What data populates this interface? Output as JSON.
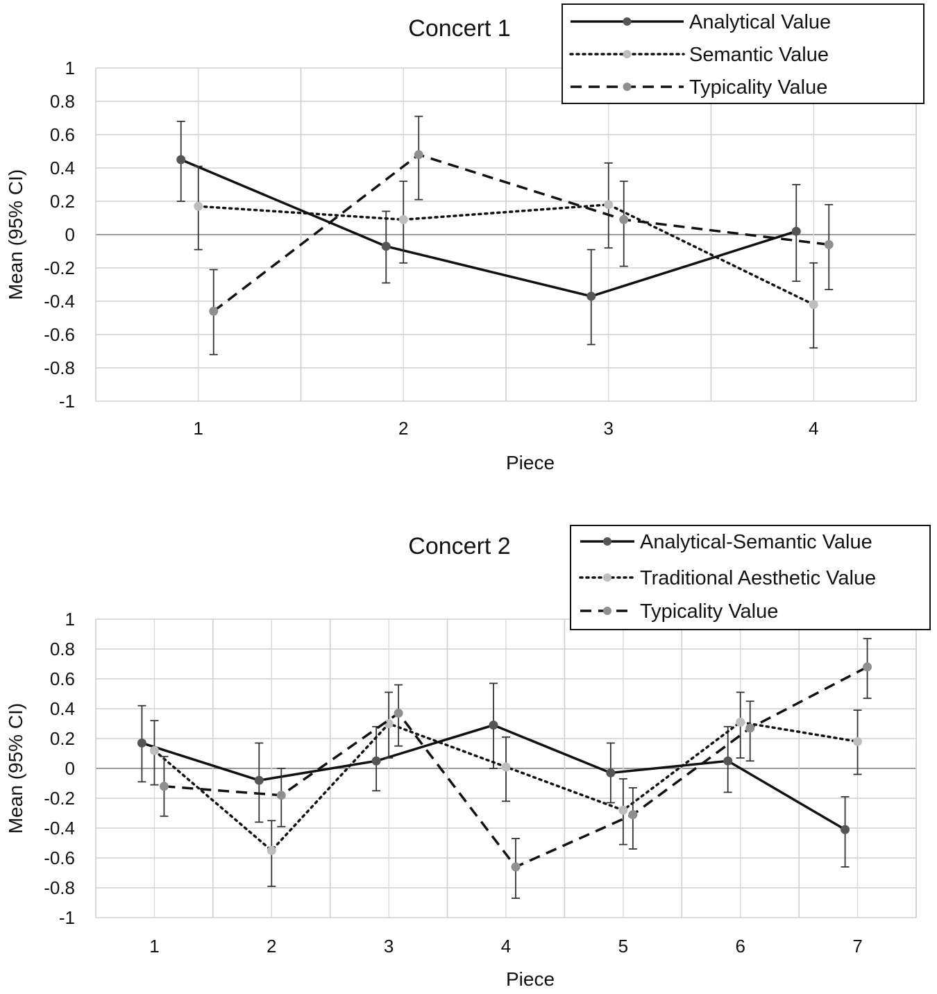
{
  "chart_data": [
    {
      "type": "line",
      "title": "Concert 1",
      "xlabel": "Piece",
      "ylabel": "Mean (95% CI)",
      "categories": [
        "1",
        "2",
        "3",
        "4"
      ],
      "ylim": [
        -1,
        1
      ],
      "yticks": [
        "1",
        "0.8",
        "0.6",
        "0.4",
        "0.2",
        "0",
        "-0.2",
        "-0.4",
        "-0.6",
        "-0.8",
        "-1"
      ],
      "legend_position": "top-right",
      "series": [
        {
          "name": "Analytical Value",
          "style": "solid",
          "color": "#555555",
          "values": [
            0.45,
            -0.07,
            -0.37,
            0.02
          ],
          "ci_upper": [
            0.68,
            0.14,
            -0.09,
            0.3
          ],
          "ci_lower": [
            0.2,
            -0.29,
            -0.66,
            -0.28
          ]
        },
        {
          "name": "Semantic Value",
          "style": "dotted",
          "color": "#b5b5b5",
          "values": [
            0.17,
            0.09,
            0.18,
            -0.42
          ],
          "ci_upper": [
            0.41,
            0.32,
            0.43,
            -0.17
          ],
          "ci_lower": [
            -0.09,
            -0.17,
            -0.08,
            -0.68
          ]
        },
        {
          "name": "Typicality Value",
          "style": "dashed",
          "color": "#8a8a8a",
          "values": [
            -0.46,
            0.48,
            0.09,
            -0.06
          ],
          "ci_upper": [
            -0.21,
            0.71,
            0.32,
            0.18
          ],
          "ci_lower": [
            -0.72,
            0.21,
            -0.19,
            -0.33
          ]
        }
      ]
    },
    {
      "type": "line",
      "title": "Concert 2",
      "xlabel": "Piece",
      "ylabel": "Mean (95% CI)",
      "categories": [
        "1",
        "2",
        "3",
        "4",
        "5",
        "6",
        "7"
      ],
      "ylim": [
        -1,
        1
      ],
      "yticks": [
        "1",
        "0.8",
        "0.6",
        "0.4",
        "0.2",
        "0",
        "-0.2",
        "-0.4",
        "-0.6",
        "-0.8",
        "-1"
      ],
      "legend_position": "top-right",
      "series": [
        {
          "name": "Analytical-Semantic Value",
          "style": "solid",
          "color": "#555555",
          "values": [
            0.17,
            -0.08,
            0.05,
            0.29,
            -0.03,
            0.05,
            -0.41
          ],
          "ci_upper": [
            0.42,
            0.17,
            0.28,
            0.57,
            0.17,
            0.28,
            -0.19
          ],
          "ci_lower": [
            -0.09,
            -0.36,
            -0.15,
            0.0,
            -0.23,
            -0.16,
            -0.66
          ]
        },
        {
          "name": "Traditional Aesthetic Value",
          "style": "dotted",
          "color": "#b5b5b5",
          "values": [
            0.12,
            -0.55,
            0.3,
            0.01,
            -0.28,
            0.31,
            0.18
          ],
          "ci_upper": [
            0.32,
            -0.35,
            0.51,
            0.21,
            -0.07,
            0.51,
            0.39
          ],
          "ci_lower": [
            -0.11,
            -0.79,
            0.07,
            -0.22,
            -0.51,
            0.07,
            -0.04
          ]
        },
        {
          "name": "Typicality Value",
          "style": "dashed",
          "color": "#8a8a8a",
          "values": [
            -0.12,
            -0.18,
            0.37,
            -0.66,
            -0.31,
            0.27,
            0.68
          ],
          "ci_upper": [
            0.08,
            0.0,
            0.56,
            -0.47,
            -0.13,
            0.45,
            0.87
          ],
          "ci_lower": [
            -0.32,
            -0.39,
            0.15,
            -0.87,
            -0.54,
            0.05,
            0.47
          ]
        }
      ]
    }
  ]
}
